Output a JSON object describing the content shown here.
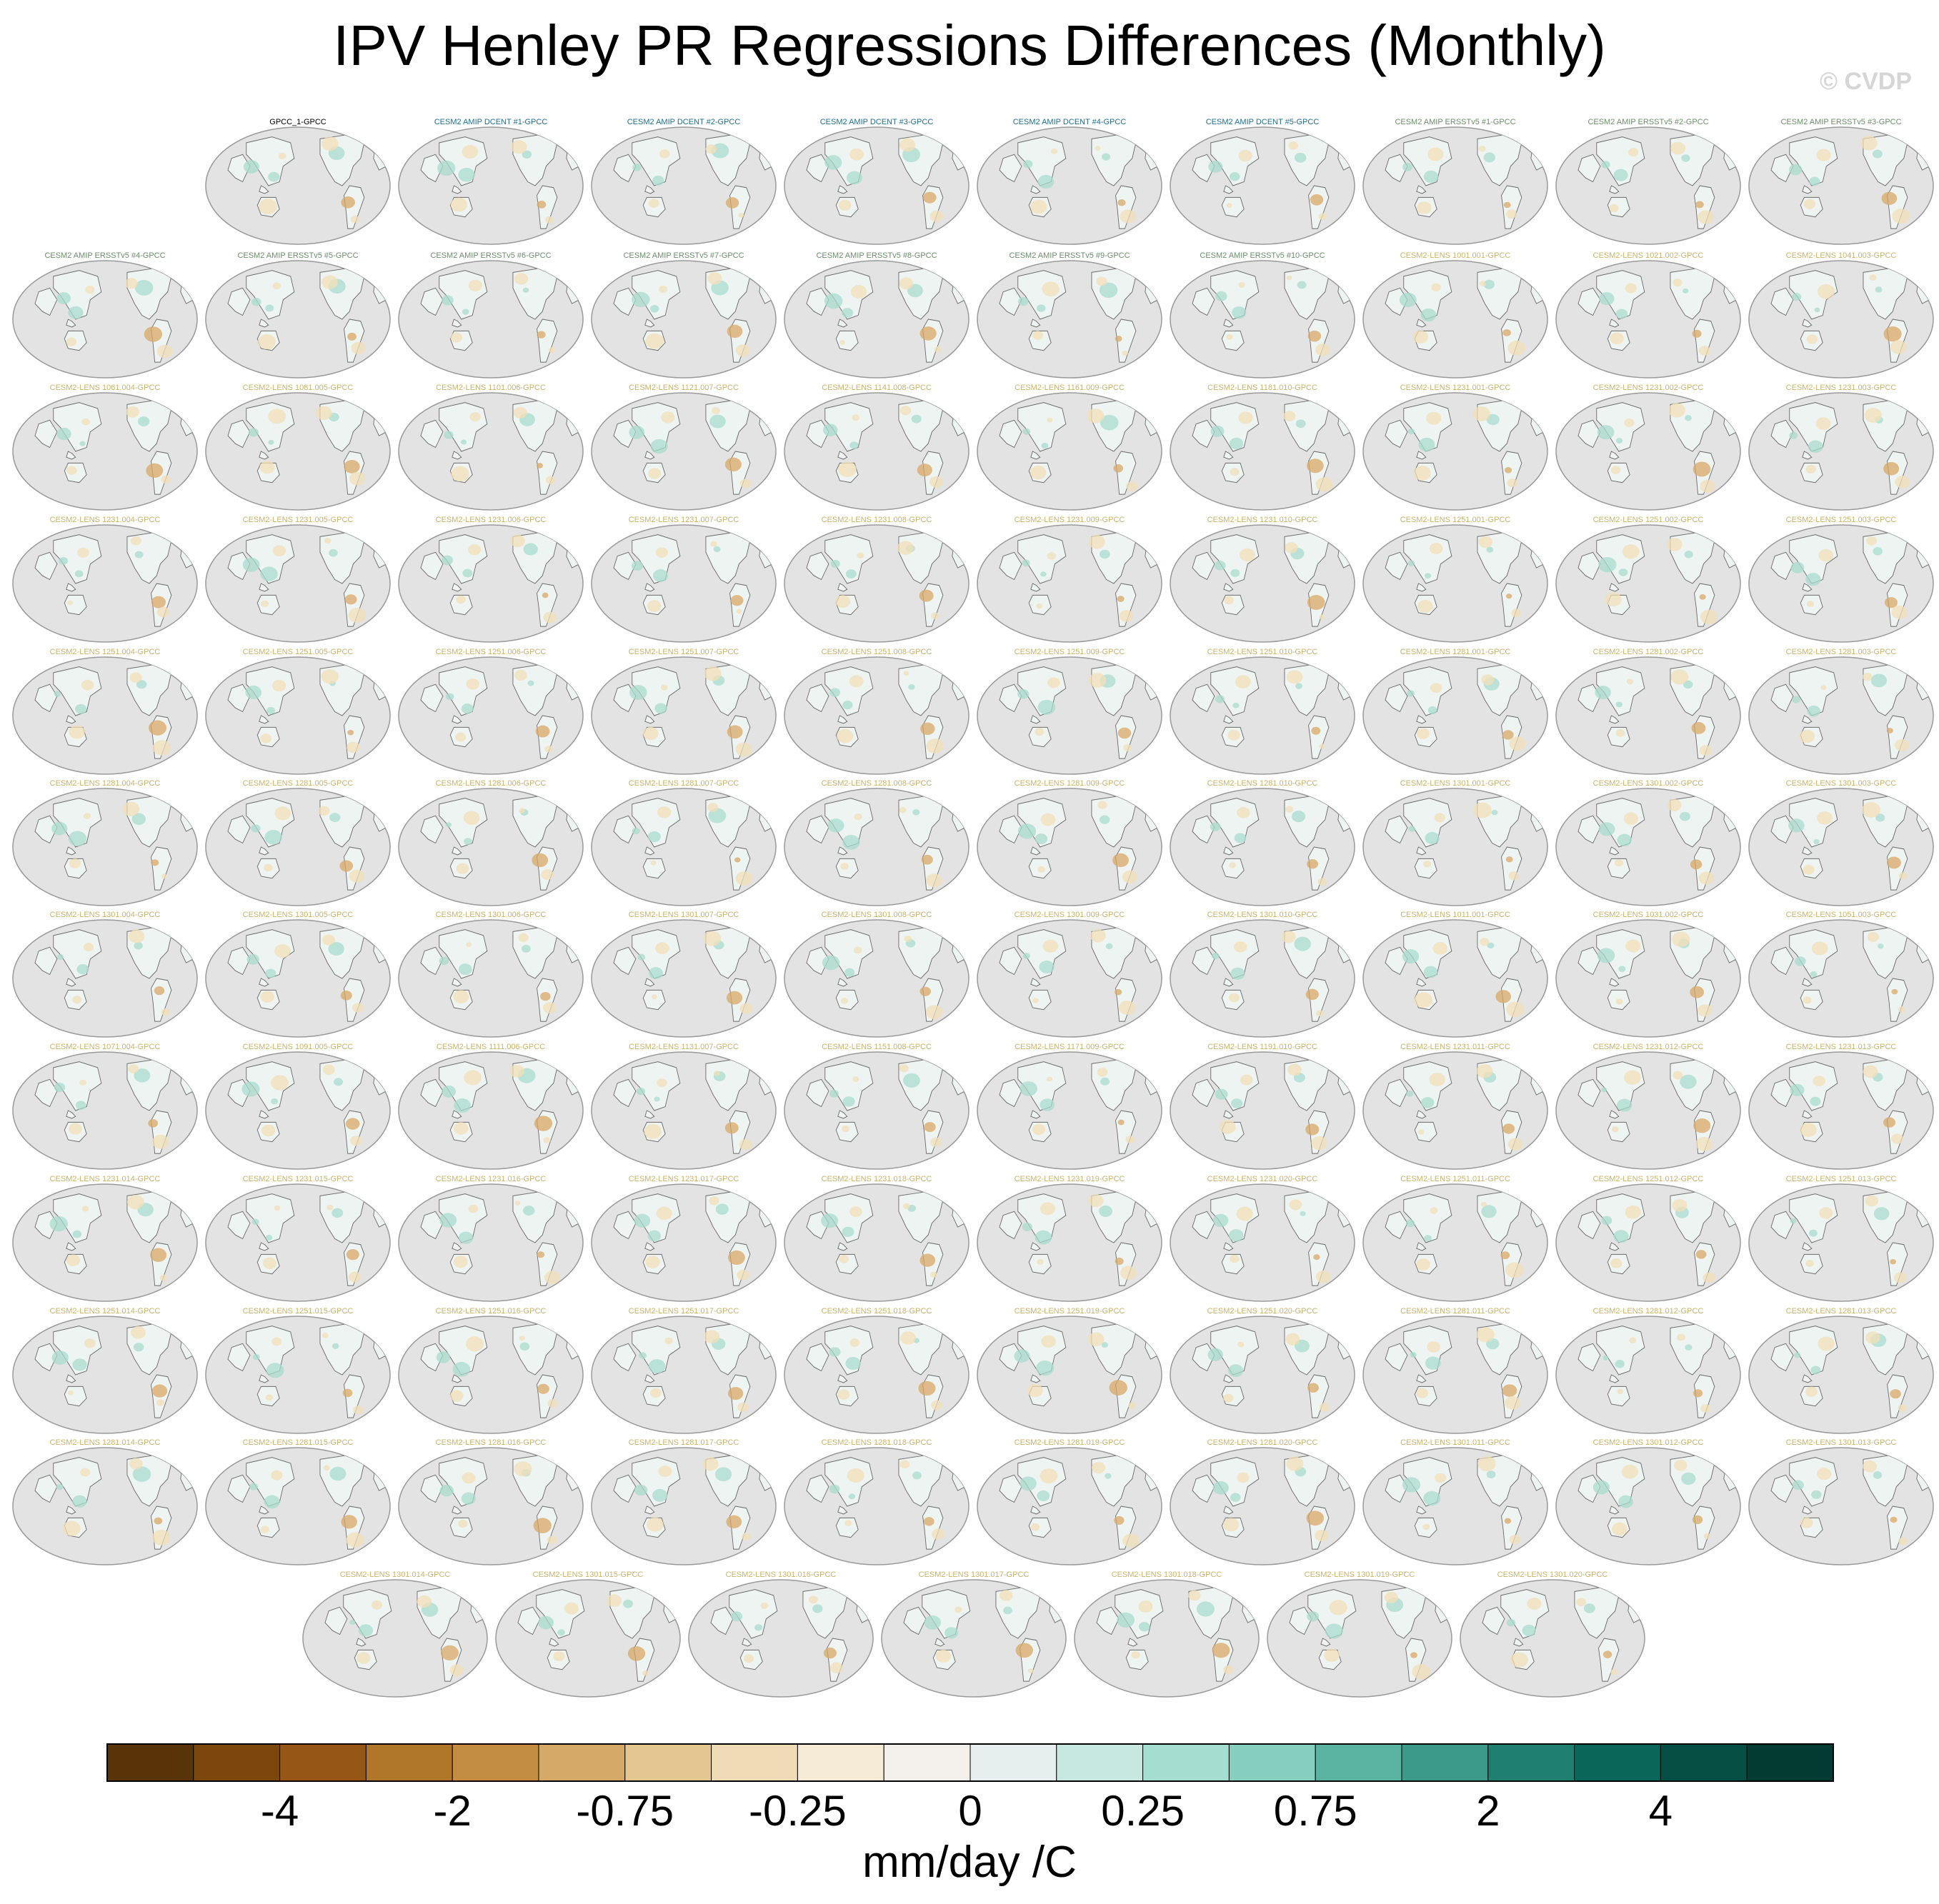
{
  "chart_data": {
    "type": "map_panels",
    "title": "IPV Henley PR Regressions Differences (Monthly)",
    "watermark": "© CVDP",
    "panel_rows": [
      [
        "GPCC_1-GPCC",
        "CESM2 AMIP DCENT #1-GPCC",
        "CESM2 AMIP DCENT #2-GPCC",
        "CESM2 AMIP DCENT #3-GPCC",
        "CESM2 AMIP DCENT #4-GPCC",
        "CESM2 AMIP DCENT #5-GPCC",
        "CESM2 AMIP ERSSTv5 #1-GPCC",
        "CESM2 AMIP ERSSTv5 #2-GPCC",
        "CESM2 AMIP ERSSTv5 #3-GPCC"
      ],
      [
        "CESM2 AMIP ERSSTv5 #4-GPCC",
        "CESM2 AMIP ERSSTv5 #5-GPCC",
        "CESM2 AMIP ERSSTv5 #6-GPCC",
        "CESM2 AMIP ERSSTv5 #7-GPCC",
        "CESM2 AMIP ERSSTv5 #8-GPCC",
        "CESM2 AMIP ERSSTv5 #9-GPCC",
        "CESM2 AMIP ERSSTv5 #10-GPCC",
        "CESM2-LENS 1001.001-GPCC",
        "CESM2-LENS 1021.002-GPCC",
        "CESM2-LENS 1041.003-GPCC"
      ],
      [
        "CESM2-LENS 1061.004-GPCC",
        "CESM2-LENS 1081.005-GPCC",
        "CESM2-LENS 1101.006-GPCC",
        "CESM2-LENS 1121.007-GPCC",
        "CESM2-LENS 1141.008-GPCC",
        "CESM2-LENS 1161.009-GPCC",
        "CESM2-LENS 1181.010-GPCC",
        "CESM2-LENS 1231.001-GPCC",
        "CESM2-LENS 1231.002-GPCC",
        "CESM2-LENS 1231.003-GPCC"
      ],
      [
        "CESM2-LENS 1231.004-GPCC",
        "CESM2-LENS 1231.005-GPCC",
        "CESM2-LENS 1231.006-GPCC",
        "CESM2-LENS 1231.007-GPCC",
        "CESM2-LENS 1231.008-GPCC",
        "CESM2-LENS 1231.009-GPCC",
        "CESM2-LENS 1231.010-GPCC",
        "CESM2-LENS 1251.001-GPCC",
        "CESM2-LENS 1251.002-GPCC",
        "CESM2-LENS 1251.003-GPCC"
      ],
      [
        "CESM2-LENS 1251.004-GPCC",
        "CESM2-LENS 1251.005-GPCC",
        "CESM2-LENS 1251.006-GPCC",
        "CESM2-LENS 1251.007-GPCC",
        "CESM2-LENS 1251.008-GPCC",
        "CESM2-LENS 1251.009-GPCC",
        "CESM2-LENS 1251.010-GPCC",
        "CESM2-LENS 1281.001-GPCC",
        "CESM2-LENS 1281.002-GPCC",
        "CESM2-LENS 1281.003-GPCC"
      ],
      [
        "CESM2-LENS 1281.004-GPCC",
        "CESM2-LENS 1281.005-GPCC",
        "CESM2-LENS 1281.006-GPCC",
        "CESM2-LENS 1281.007-GPCC",
        "CESM2-LENS 1281.008-GPCC",
        "CESM2-LENS 1281.009-GPCC",
        "CESM2-LENS 1281.010-GPCC",
        "CESM2-LENS 1301.001-GPCC",
        "CESM2-LENS 1301.002-GPCC",
        "CESM2-LENS 1301.003-GPCC"
      ],
      [
        "CESM2-LENS 1301.004-GPCC",
        "CESM2-LENS 1301.005-GPCC",
        "CESM2-LENS 1301.006-GPCC",
        "CESM2-LENS 1301.007-GPCC",
        "CESM2-LENS 1301.008-GPCC",
        "CESM2-LENS 1301.009-GPCC",
        "CESM2-LENS 1301.010-GPCC",
        "CESM2-LENS 1011.001-GPCC",
        "CESM2-LENS 1031.002-GPCC",
        "CESM2-LENS 1051.003-GPCC"
      ],
      [
        "CESM2-LENS 1071.004-GPCC",
        "CESM2-LENS 1091.005-GPCC",
        "CESM2-LENS 1111.006-GPCC",
        "CESM2-LENS 1131.007-GPCC",
        "CESM2-LENS 1151.008-GPCC",
        "CESM2-LENS 1171.009-GPCC",
        "CESM2-LENS 1191.010-GPCC",
        "CESM2-LENS 1231.011-GPCC",
        "CESM2-LENS 1231.012-GPCC",
        "CESM2-LENS 1231.013-GPCC"
      ],
      [
        "CESM2-LENS 1231.014-GPCC",
        "CESM2-LENS 1231.015-GPCC",
        "CESM2-LENS 1231.016-GPCC",
        "CESM2-LENS 1231.017-GPCC",
        "CESM2-LENS 1231.018-GPCC",
        "CESM2-LENS 1231.019-GPCC",
        "CESM2-LENS 1231.020-GPCC",
        "CESM2-LENS 1251.011-GPCC",
        "CESM2-LENS 1251.012-GPCC",
        "CESM2-LENS 1251.013-GPCC"
      ],
      [
        "CESM2-LENS 1251.014-GPCC",
        "CESM2-LENS 1251.015-GPCC",
        "CESM2-LENS 1251.016-GPCC",
        "CESM2-LENS 1251.017-GPCC",
        "CESM2-LENS 1251.018-GPCC",
        "CESM2-LENS 1251.019-GPCC",
        "CESM2-LENS 1251.020-GPCC",
        "CESM2-LENS 1281.011-GPCC",
        "CESM2-LENS 1281.012-GPCC",
        "CESM2-LENS 1281.013-GPCC"
      ],
      [
        "CESM2-LENS 1281.014-GPCC",
        "CESM2-LENS 1281.015-GPCC",
        "CESM2-LENS 1281.016-GPCC",
        "CESM2-LENS 1281.017-GPCC",
        "CESM2-LENS 1281.018-GPCC",
        "CESM2-LENS 1281.019-GPCC",
        "CESM2-LENS 1281.020-GPCC",
        "CESM2-LENS 1301.011-GPCC",
        "CESM2-LENS 1301.012-GPCC",
        "CESM2-LENS 1301.013-GPCC"
      ],
      [
        "CESM2-LENS 1301.014-GPCC",
        "CESM2-LENS 1301.015-GPCC",
        "CESM2-LENS 1301.016-GPCC",
        "CESM2-LENS 1301.017-GPCC",
        "CESM2-LENS 1301.018-GPCC",
        "CESM2-LENS 1301.019-GPCC",
        "CESM2-LENS 1301.020-GPCC"
      ]
    ],
    "label_colors": {
      "observation": "#000000",
      "amip_dcent": "#1f6f8b",
      "amip_ersst": "#6b8e6b",
      "lens": "#c8b46a"
    },
    "map_colors": {
      "ocean": "#e3e3e3",
      "land_base": "#eef4f1",
      "dry": "#f2dfb8",
      "drier": "#d9a867",
      "wet": "#a9dccf",
      "coast": "#6a6a6a"
    },
    "colorbar": {
      "label": "mm/day /C",
      "colors": [
        "#5a3409",
        "#7b470d",
        "#965716",
        "#b0762a",
        "#c38d43",
        "#d4aa66",
        "#e4c690",
        "#efdcb6",
        "#f5ebd6",
        "#f3f0eb",
        "#e6efee",
        "#c7e7e1",
        "#a6ddd1",
        "#86cfbf",
        "#5bb3a2",
        "#3b9a8a",
        "#1f7f70",
        "#0a6659",
        "#054f44",
        "#033a31"
      ],
      "tick_labels": [
        "-4",
        "-2",
        "-0.75",
        "-0.25",
        "0",
        "0.25",
        "0.75",
        "2",
        "4"
      ],
      "tick_boundaries": [
        2,
        4,
        6,
        8,
        10,
        12,
        14,
        16,
        18
      ]
    }
  }
}
